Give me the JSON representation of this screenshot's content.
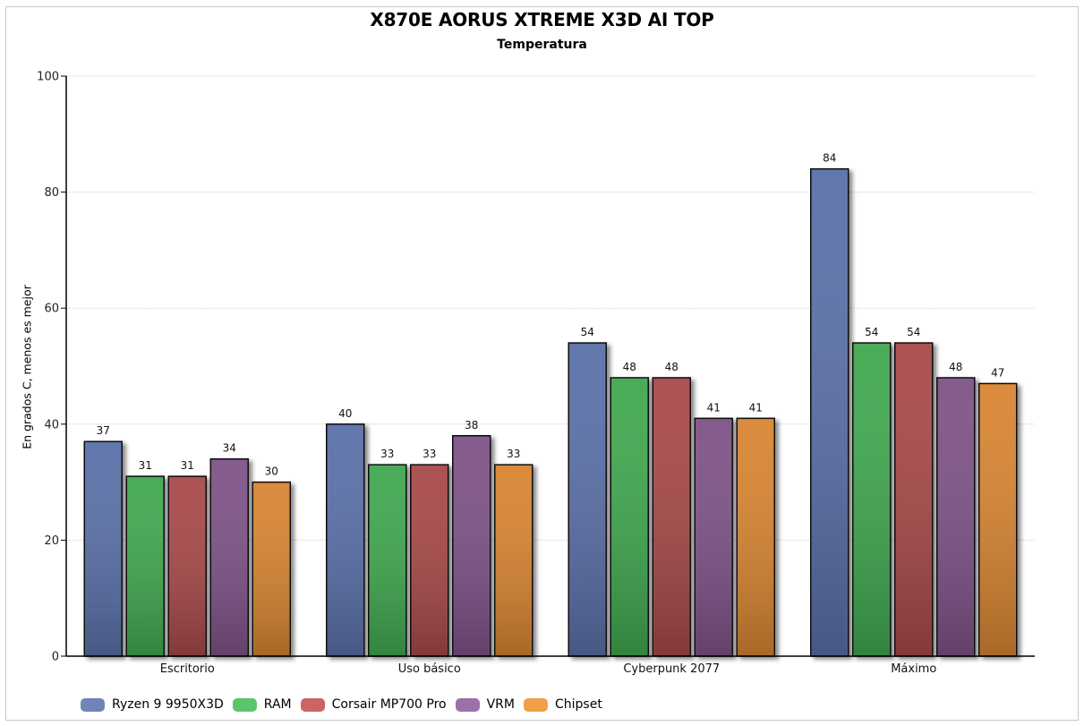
{
  "chart_data": {
    "type": "bar",
    "title": "X870E AORUS XTREME X3D AI TOP",
    "subtitle": "Temperatura",
    "xlabel": "",
    "ylabel": "En grados C, menos es mejor",
    "ylim": [
      0,
      100
    ],
    "yticks": [
      0,
      20,
      40,
      60,
      80,
      100
    ],
    "grid": true,
    "legend_position": "bottom-left",
    "categories": [
      "Escritorio",
      "Uso básico",
      "Cyberpunk 2077",
      "Máximo"
    ],
    "series": [
      {
        "name": "Ryzen 9 9950X3D",
        "color": "#5a6fa8",
        "legend_color": "#6f85b8",
        "values": [
          37,
          40,
          54,
          84
        ]
      },
      {
        "name": "RAM",
        "color": "#3fa850",
        "legend_color": "#5cc46a",
        "values": [
          31,
          33,
          48,
          54
        ]
      },
      {
        "name": "Corsair MP700 Pro",
        "color": "#a84848",
        "legend_color": "#cc6464",
        "values": [
          31,
          33,
          48,
          54
        ]
      },
      {
        "name": "VRM",
        "color": "#7e5288",
        "legend_color": "#9c70a8",
        "values": [
          34,
          38,
          41,
          48
        ]
      },
      {
        "name": "Chipset",
        "color": "#d88530",
        "legend_color": "#f0a048",
        "values": [
          30,
          33,
          41,
          47
        ]
      }
    ]
  },
  "header": {
    "title": "X870E AORUS XTREME X3D AI TOP",
    "subtitle": "Temperatura"
  },
  "axis": {
    "ylabel": "En grados C, menos es mejor"
  },
  "legend": {
    "items": [
      {
        "label": "Ryzen 9 9950X3D",
        "color": "#6f85b8"
      },
      {
        "label": "RAM",
        "color": "#5cc46a"
      },
      {
        "label": "Corsair MP700 Pro",
        "color": "#cc6464"
      },
      {
        "label": "VRM",
        "color": "#9c70a8"
      },
      {
        "label": "Chipset",
        "color": "#f0a048"
      }
    ]
  }
}
